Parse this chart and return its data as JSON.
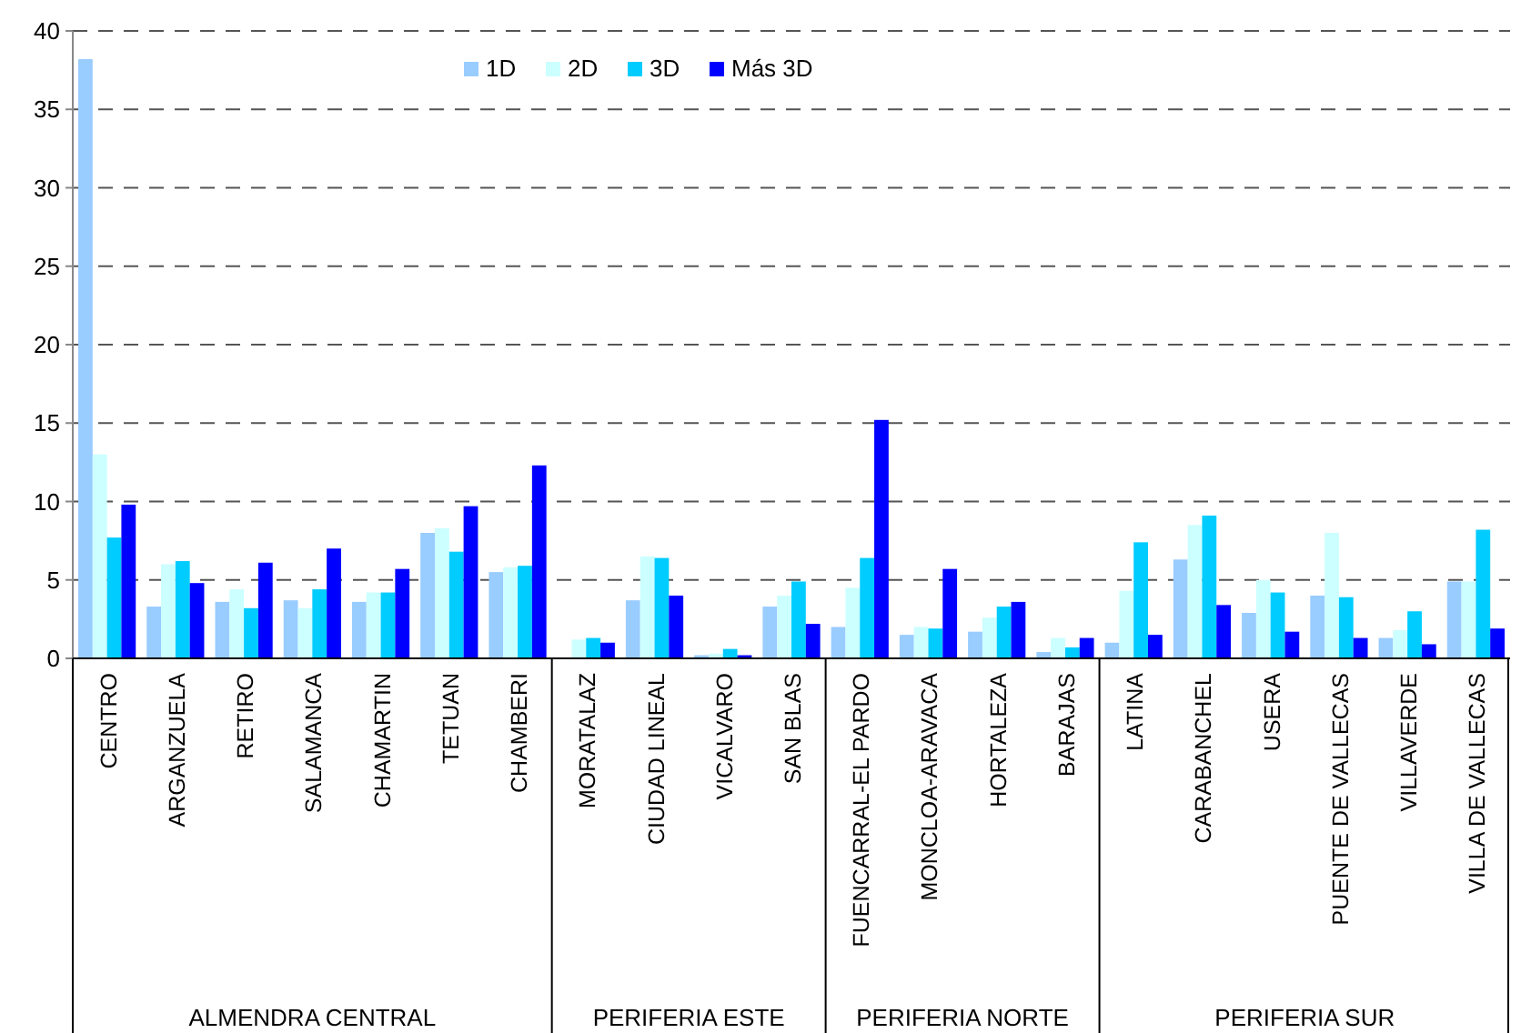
{
  "chart_data": {
    "type": "bar",
    "categories": [
      "CENTRO",
      "ARGANZUELA",
      "RETIRO",
      "SALAMANCA",
      "CHAMARTIN",
      "TETUAN",
      "CHAMBERI",
      "MORATALAZ",
      "CIUDAD LINEAL",
      "VICALVARO",
      "SAN BLAS",
      "FUENCARRAL-EL PARDO",
      "MONCLOA-ARAVACA",
      "HORTALEZA",
      "BARAJAS",
      "LATINA",
      "CARABANCHEL",
      "USERA",
      "PUENTE DE VALLECAS",
      "VILLAVERDE",
      "VILLA DE VALLECAS"
    ],
    "series": [
      {
        "name": "1D",
        "color": "#99ccff",
        "values": [
          38.2,
          3.3,
          3.6,
          3.7,
          3.6,
          8.0,
          5.5,
          0,
          3.7,
          0.2,
          3.3,
          2.0,
          1.5,
          1.7,
          0.4,
          1.0,
          6.3,
          2.9,
          4.0,
          1.3,
          4.9
        ]
      },
      {
        "name": "2D",
        "color": "#ccffff",
        "values": [
          13.0,
          6.0,
          4.4,
          3.2,
          4.2,
          8.3,
          5.8,
          1.2,
          6.5,
          0.3,
          4.0,
          4.5,
          2.0,
          2.6,
          1.3,
          4.3,
          8.5,
          5.0,
          8.0,
          1.8,
          4.9
        ]
      },
      {
        "name": "3D",
        "color": "#00ccff",
        "values": [
          7.7,
          6.2,
          3.2,
          4.4,
          4.2,
          6.8,
          5.9,
          1.3,
          6.4,
          0.6,
          4.9,
          6.4,
          1.9,
          3.3,
          0.7,
          7.4,
          9.1,
          4.2,
          3.9,
          3.0,
          8.2
        ]
      },
      {
        "name": "Más 3D",
        "color": "#0000ff",
        "values": [
          9.8,
          4.8,
          6.1,
          7.0,
          5.7,
          9.7,
          12.3,
          1.0,
          4.0,
          0.2,
          2.2,
          15.2,
          5.7,
          3.6,
          1.3,
          1.5,
          3.4,
          1.7,
          1.3,
          0.9,
          1.9
        ]
      }
    ],
    "ylim": [
      0,
      40
    ],
    "yticks": [
      0,
      5,
      10,
      15,
      20,
      25,
      30,
      35,
      40
    ],
    "grid": "y",
    "legend": "top",
    "annotations": [
      "ALMENDRA CENTRAL",
      "PERIFERIA ESTE",
      "PERIFERIA NORTE",
      "PERIFERIA SUR"
    ]
  }
}
